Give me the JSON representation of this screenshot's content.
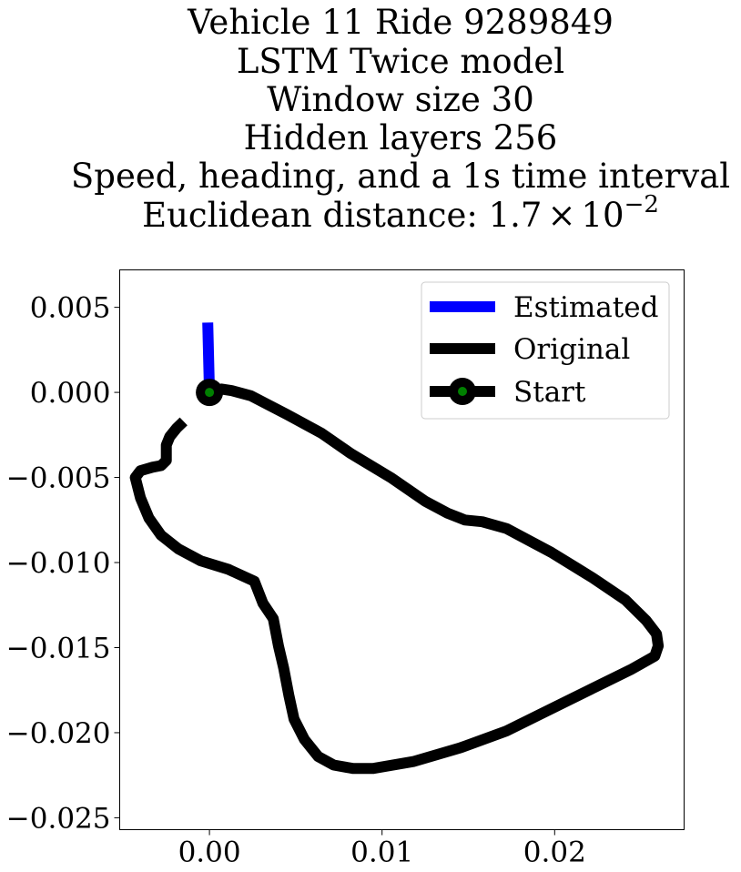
{
  "title_lines": [
    "Vehicle 11 Ride 9289849",
    "LSTM Twice model",
    "Window size 30",
    "Hidden layers 256",
    "Speed, heading, and a 1s time interval"
  ],
  "title_last": {
    "prefix": "Euclidean distance: 1.7",
    "times": "×",
    "base": "10",
    "exponent": "−2"
  },
  "chart_data": {
    "type": "line",
    "xlim": [
      -0.0052,
      0.0275
    ],
    "ylim": [
      -0.0257,
      0.0072
    ],
    "xticks": [
      0.0,
      0.01,
      0.02
    ],
    "xtick_labels": [
      "0.00",
      "0.01",
      "0.02"
    ],
    "yticks": [
      0.005,
      0.0,
      -0.005,
      -0.01,
      -0.015,
      -0.02,
      -0.025
    ],
    "ytick_labels": [
      "0.005",
      "0.000",
      "−0.005",
      "−0.010",
      "−0.015",
      "−0.020",
      "−0.025"
    ],
    "grid": false,
    "legend_position": "top-right",
    "series": [
      {
        "name": "Estimated",
        "color": "#0000ff",
        "x": [
          0.0,
          -0.0001
        ],
        "y": [
          0.0,
          0.0041
        ]
      },
      {
        "name": "Original",
        "color": "#000000",
        "x": [
          0.0,
          0.0007,
          0.0013,
          0.0024,
          0.0045,
          0.0065,
          0.0082,
          0.0105,
          0.0125,
          0.0138,
          0.0148,
          0.0158,
          0.0172,
          0.0198,
          0.0222,
          0.0241,
          0.0253,
          0.0259,
          0.026,
          0.0258,
          0.0244,
          0.0222,
          0.0196,
          0.0172,
          0.0145,
          0.0118,
          0.0095,
          0.0083,
          0.0072,
          0.0063,
          0.0055,
          0.0049,
          0.0046,
          0.0043,
          0.004,
          0.0037,
          0.0031,
          0.0026,
          0.0011,
          -0.0005,
          -0.0018,
          -0.0028,
          -0.0035,
          -0.004,
          -0.0043,
          -0.004,
          -0.0033,
          -0.0028,
          -0.0025,
          -0.0025,
          -0.0023,
          -0.0019,
          -0.0015
        ],
        "y": [
          0.0,
          0.0002,
          0.0001,
          -0.0002,
          -0.0013,
          -0.0024,
          -0.0036,
          -0.005,
          -0.0064,
          -0.0071,
          -0.0075,
          -0.0076,
          -0.008,
          -0.0094,
          -0.0109,
          -0.0122,
          -0.0134,
          -0.0142,
          -0.0149,
          -0.0155,
          -0.0163,
          -0.0174,
          -0.0187,
          -0.0199,
          -0.0209,
          -0.0217,
          -0.0221,
          -0.0221,
          -0.0219,
          -0.0214,
          -0.0204,
          -0.0192,
          -0.0178,
          -0.0162,
          -0.0149,
          -0.0133,
          -0.0124,
          -0.0111,
          -0.0104,
          -0.0099,
          -0.0092,
          -0.0084,
          -0.0074,
          -0.0062,
          -0.005,
          -0.0046,
          -0.0044,
          -0.0043,
          -0.004,
          -0.0031,
          -0.0026,
          -0.0021,
          -0.0017
        ]
      },
      {
        "name": "Start",
        "color": "#000000",
        "marker_color": "#008000",
        "x": [
          0.0
        ],
        "y": [
          0.0
        ]
      }
    ]
  }
}
